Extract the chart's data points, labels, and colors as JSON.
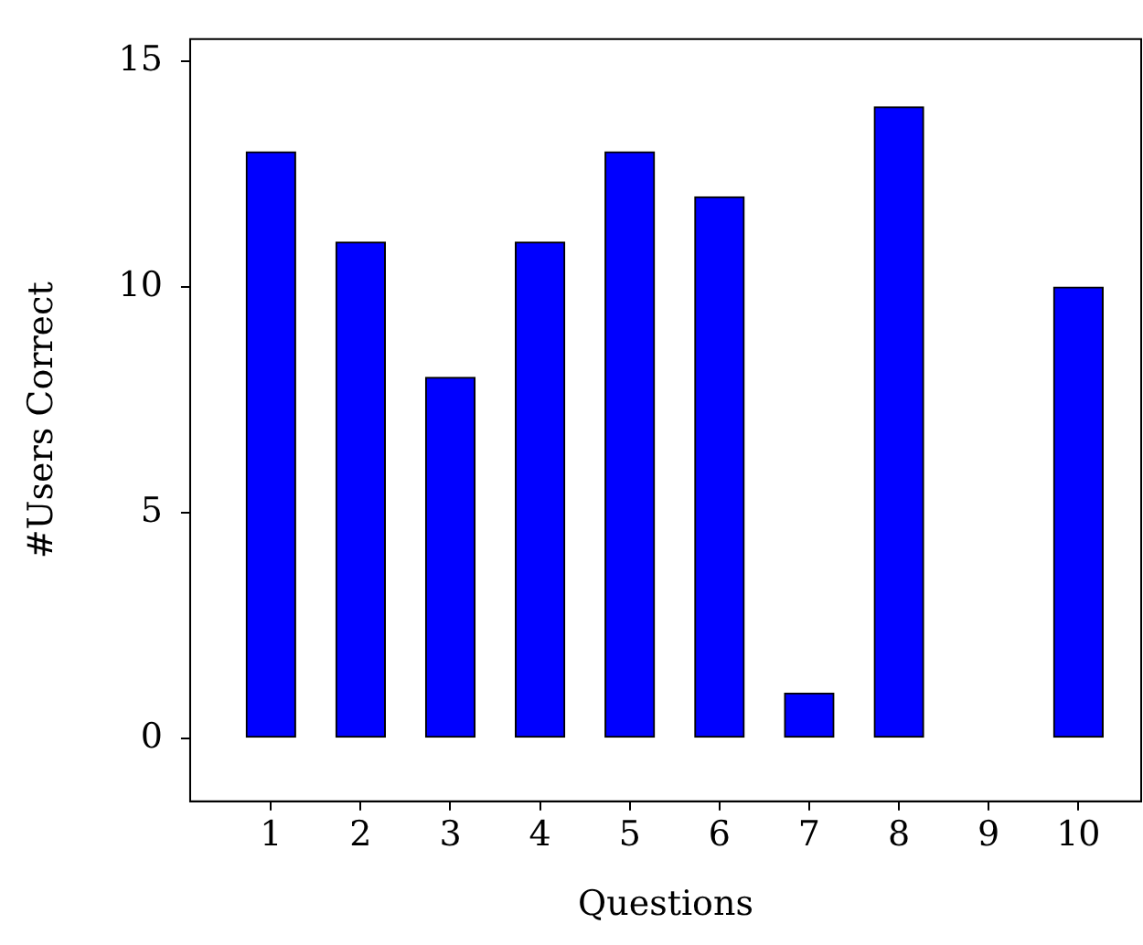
{
  "chart_data": {
    "type": "bar",
    "xlabel": "Questions",
    "ylabel": "#Users Correct",
    "x": [
      1,
      2,
      3,
      4,
      5,
      6,
      7,
      8,
      9,
      10
    ],
    "values": [
      13,
      11,
      8,
      11,
      13,
      12,
      1,
      14,
      0,
      10
    ],
    "color": "#0000ff",
    "xlim": [
      0.1,
      10.7
    ],
    "xticks": [
      1,
      2,
      3,
      4,
      5,
      6,
      7,
      8,
      9,
      10
    ],
    "ylim": [
      -1.4,
      15.5
    ],
    "yticks": [
      0,
      5,
      10,
      15
    ],
    "grid": false,
    "legend": false
  }
}
